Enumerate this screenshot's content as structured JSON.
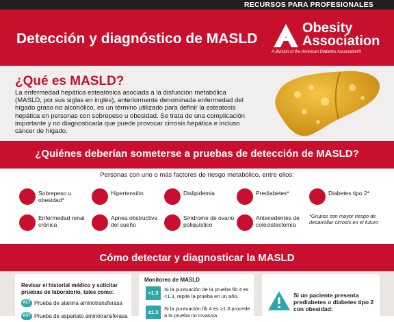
{
  "header": {
    "tagline": "RECURSOS PARA PROFESIONALES",
    "title": "Detección y diagnóstico de MASLD",
    "logo": "Obesity Association",
    "logo_sub": "A division of the American Diabetes Association®"
  },
  "what": {
    "title": "¿Qué es MASLD?",
    "body": "La enfermedad hepática esteatósica asociada a la disfunción metabólica (MASLD, por sus siglas en inglés), anteriormente denominada enfermedad del hígado graso no alcohólico, es un término utilizado para definir la esteatosis hepática en personas con sobrepeso u obesidad. Se trata de una complicación importante y no diagnosticada que puede provocar cirrosis hepática e incluso cáncer de hígado."
  },
  "who": {
    "title": "¿Quiénes deberían someterse a pruebas de detección de MASLD?",
    "intro": "Personas con uno o más factores de riesgo metabólico, entre ellos:",
    "factors": [
      "Sobrepeso u obesidad*",
      "Hipertensión",
      "Dislipidemia",
      "Prediabetes*",
      "Diabetes tipo 2*",
      "Enfermedad renal crónica",
      "Apnea obstructiva del sueño",
      "Síndrome de ovario poliquístico",
      "Antecedentes de colecistectomía"
    ],
    "note": "*Grupos con mayor riesgo de desarrollar cirrosis en el futuro"
  },
  "how": {
    "title": "Cómo detectar y diagnosticar la MASLD",
    "history": {
      "title": "Revisar el historial médico y solicitar pruebas de laboratorio, tales como:",
      "tests": [
        {
          "badge": "ALT",
          "label": "Prueba de alanina aminotransferasa"
        },
        {
          "badge": "AST",
          "label": "Prueba de aspartato aminotransferasa"
        }
      ]
    },
    "monitoring": {
      "title": "Monitoreo de MASLD",
      "steps": [
        {
          "badge": "<1.3",
          "label": "Si la puntuación de la prueba fib 4 es <1.3, repite la prueba en un año."
        },
        {
          "badge": "≥1.3",
          "label": "Si la puntuación fib 4 es ≥1.3 procede a la prueba no invasiva"
        }
      ]
    },
    "warning": "Si un paciente presenta prediabetes o diabetes tipo 2 con obesidad:"
  }
}
